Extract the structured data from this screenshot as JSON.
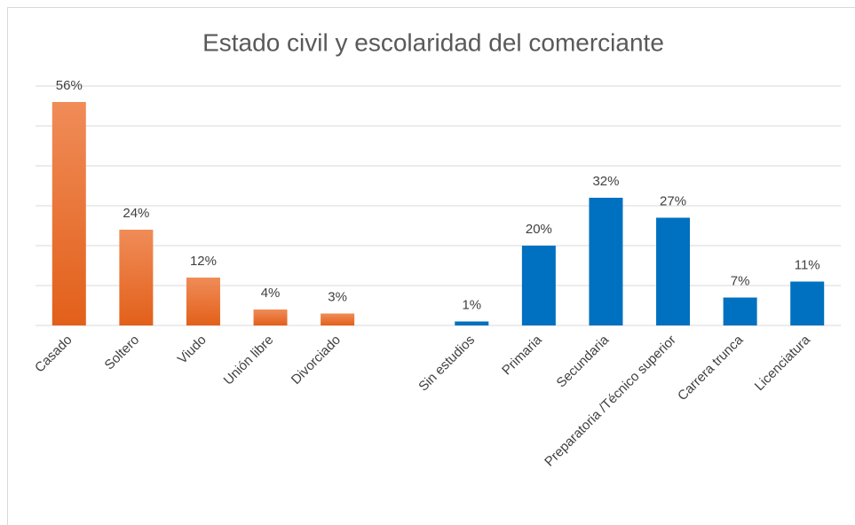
{
  "chart_data": {
    "type": "bar",
    "title": "Estado civil y escolaridad del comerciante",
    "categories": [
      "Casado",
      "Soltero",
      "Viudo",
      "Unión libre",
      "Divorciado",
      null,
      "Sin estudios",
      "Primaria",
      "Secundaria",
      "Preparatoria /Técnico superior",
      "Carrera trunca",
      "Licenciatura"
    ],
    "values": [
      56,
      24,
      12,
      4,
      3,
      null,
      1,
      20,
      32,
      27,
      7,
      11
    ],
    "value_labels": [
      "56%",
      "24%",
      "12%",
      "4%",
      "3%",
      null,
      "1%",
      "20%",
      "32%",
      "27%",
      "7%",
      "11%"
    ],
    "colors": [
      "#e9702f",
      "#e9702f",
      "#e9702f",
      "#e9702f",
      "#e9702f",
      null,
      "#0070c0",
      "#0070c0",
      "#0070c0",
      "#0070c0",
      "#0070c0",
      "#0070c0"
    ],
    "ylim": [
      0,
      60
    ],
    "yticks": [
      0,
      10,
      20,
      30,
      40,
      50,
      60
    ],
    "grid": true
  }
}
